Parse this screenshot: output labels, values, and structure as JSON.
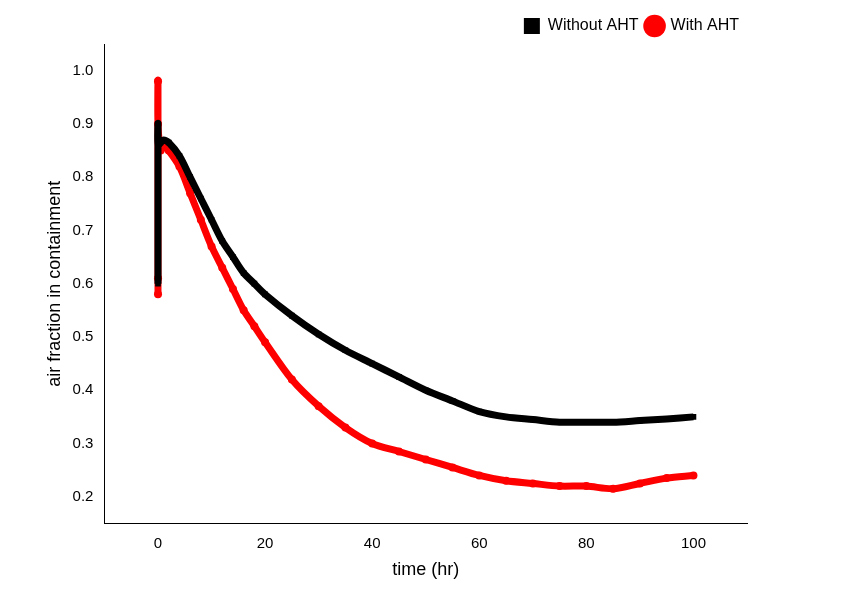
{
  "chart_data": {
    "type": "scatter",
    "x_label": "time (hr)",
    "y_label": "air fraction in containment",
    "x": [
      0,
      0,
      0,
      0,
      0.5,
      1,
      2,
      4,
      6,
      8,
      10,
      12,
      14,
      16,
      18,
      20,
      25,
      30,
      35,
      40,
      45,
      50,
      55,
      60,
      65,
      70,
      75,
      80,
      85,
      90,
      95,
      100
    ],
    "series": [
      {
        "name": "Without AHT",
        "color": "#000000",
        "marker": "square",
        "values": [
          0.6,
          0.7,
          0.9,
          0.86,
          0.865,
          0.87,
          0.865,
          0.84,
          0.8,
          0.76,
          0.72,
          0.68,
          0.65,
          0.62,
          0.6,
          0.58,
          0.54,
          0.505,
          0.475,
          0.45,
          0.425,
          0.4,
          0.38,
          0.36,
          0.35,
          0.345,
          0.34,
          0.34,
          0.34,
          0.343,
          0.346,
          0.35
        ]
      },
      {
        "name": "With AHT",
        "color": "#ff0000",
        "marker": "circle",
        "values": [
          0.58,
          0.61,
          0.98,
          0.9,
          0.85,
          0.86,
          0.85,
          0.82,
          0.77,
          0.72,
          0.67,
          0.63,
          0.59,
          0.55,
          0.52,
          0.49,
          0.42,
          0.37,
          0.33,
          0.3,
          0.285,
          0.27,
          0.255,
          0.24,
          0.23,
          0.225,
          0.22,
          0.22,
          0.215,
          0.225,
          0.235,
          0.24
        ]
      }
    ],
    "xlim": [
      -10,
      110
    ],
    "xticks": [
      0,
      20,
      40,
      60,
      80,
      100
    ],
    "ylim": [
      0.15,
      1.05
    ],
    "yticks": [
      0.2,
      0.3,
      0.4,
      0.5,
      0.6,
      0.7,
      0.8,
      0.9,
      {
        "value": 1,
        "label": "1.0"
      }
    ],
    "grid": false,
    "legend": "top-right"
  }
}
